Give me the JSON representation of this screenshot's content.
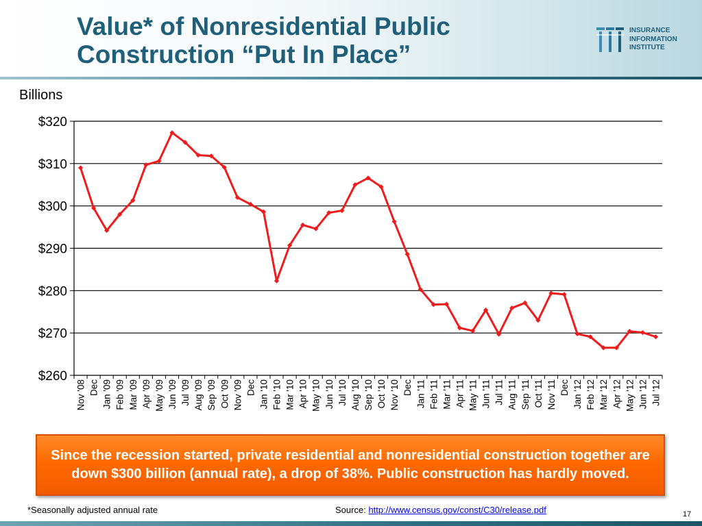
{
  "header": {
    "title_line1": "Value* of Nonresidential Public",
    "title_line2": "Construction “Put In Place”",
    "logo_line1": "INSURANCE",
    "logo_line2": "INFORMATION",
    "logo_line3": "INSTITUTE",
    "title_color": "#1f5f7a"
  },
  "chart_data": {
    "type": "line",
    "ylabel": "Billions",
    "ylim": [
      260,
      320
    ],
    "yticks": [
      260,
      270,
      280,
      290,
      300,
      310,
      320
    ],
    "ytick_labels": [
      "$260",
      "$270",
      "$280",
      "$290",
      "$300",
      "$310",
      "$320"
    ],
    "grid": true,
    "line_color": "#ee1c1c",
    "categories": [
      "Nov '08",
      "Dec",
      "Jan '09",
      "Feb '09",
      "Mar '09",
      "Apr '09",
      "May '09",
      "Jun '09",
      "Jul '09",
      "Aug '09",
      "Sep '09",
      "Oct '09",
      "Nov '09",
      "Dec",
      "Jan '10",
      "Feb '10",
      "Mar '10",
      "Apr '10",
      "May '10",
      "Jun '10",
      "Jul '10",
      "Aug '10",
      "Sep '10",
      "Oct '10",
      "Nov '10",
      "Dec",
      "Jan '11",
      "Feb '11",
      "Mar '11",
      "Apr '11",
      "May '11",
      "Jun '11",
      "Jul '11",
      "Aug '11",
      "Sep '11",
      "Oct '11",
      "Nov '11",
      "Dec",
      "Jan '12",
      "Feb '12",
      "Mar '12",
      "Apr '12",
      "May '12",
      "Jun '12",
      "Jul '12"
    ],
    "values": [
      309,
      299.5,
      294.2,
      298,
      301.3,
      309.7,
      310.6,
      317.3,
      315,
      312,
      311.8,
      309.1,
      302,
      300.4,
      298.6,
      282.3,
      290.7,
      295.5,
      294.6,
      298.4,
      298.9,
      305,
      306.6,
      304.5,
      296.3,
      288.6,
      280.3,
      276.7,
      276.8,
      271.2,
      270.5,
      275.4,
      269.7,
      275.9,
      277.1,
      273,
      279.4,
      279.1,
      269.8,
      269.1,
      266.5,
      266.5,
      270.4,
      270.1,
      269.1
    ]
  },
  "callout": {
    "text": "Since the recession started, private residential and nonresidential construction together are down $300 billion (annual rate), a drop of 38%. Public construction has hardly moved."
  },
  "footer": {
    "footnote": "*Seasonally adjusted annual rate",
    "source_label": "Source:",
    "source_url": "http://www.census.gov/const/C30/release.pdf",
    "page_number": "17"
  }
}
